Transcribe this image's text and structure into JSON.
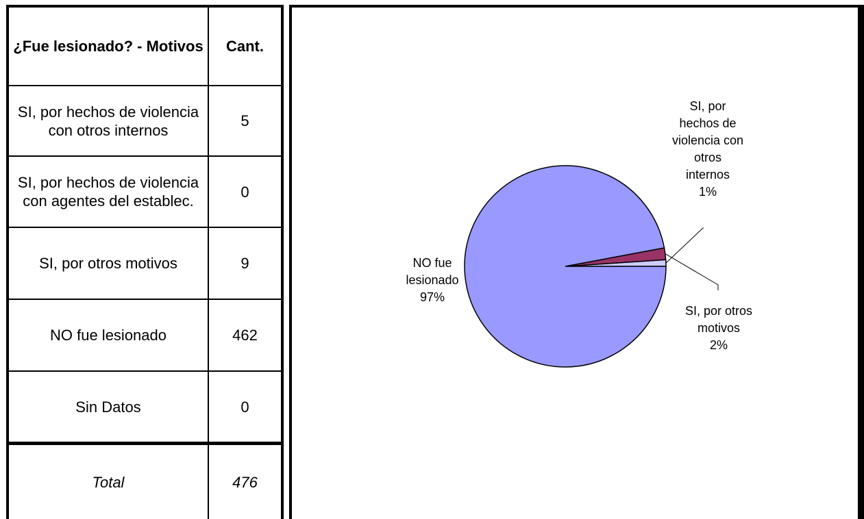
{
  "table": {
    "header": {
      "col1": "¿Fue lesionado? - Motivos",
      "col2": "Cant."
    },
    "rows": [
      {
        "label": "SI, por hechos de violencia con otros internos",
        "value": "5"
      },
      {
        "label": "SI, por hechos de violencia con agentes del establec.",
        "value": "0"
      },
      {
        "label": "SI, por otros motivos",
        "value": "9"
      },
      {
        "label": "NO fue lesionado",
        "value": "462"
      },
      {
        "label": "Sin Datos",
        "value": "0"
      }
    ],
    "total": {
      "label": "Total",
      "value": "476"
    }
  },
  "chart_data": {
    "type": "pie",
    "slices": [
      {
        "label": "SI, por hechos de violencia con otros internos",
        "value": 5,
        "percent": "1%",
        "color": "#CCCCFF"
      },
      {
        "label": "SI, por hechos de violencia con agentes del establec.",
        "value": 0,
        "percent": "0%",
        "color": "#FFFFCC"
      },
      {
        "label": "SI, por otros motivos",
        "value": 9,
        "percent": "2%",
        "color": "#993366"
      },
      {
        "label": "NO fue lesionado",
        "value": 462,
        "percent": "97%",
        "color": "#9999FF"
      },
      {
        "label": "Sin Datos",
        "value": 0,
        "percent": "0%",
        "color": "#CCFFFF"
      }
    ],
    "data_labels": {
      "otros_internos": [
        "SI, por",
        "hechos de",
        "violencia con",
        "otros",
        "internos",
        "1%"
      ],
      "otros_motivos": [
        "SI, por otros",
        "motivos",
        "2%"
      ],
      "no_lesionado": [
        "NO fue",
        "lesionado",
        "97%"
      ]
    }
  }
}
